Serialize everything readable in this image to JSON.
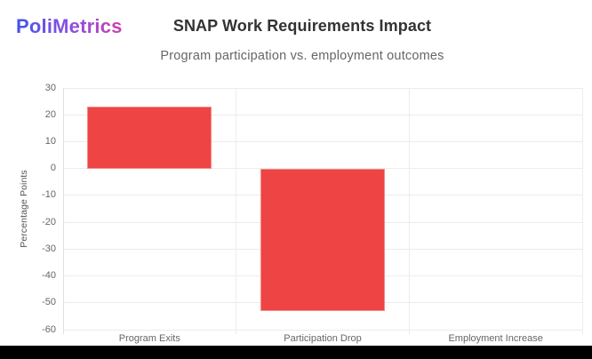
{
  "brand": {
    "name": "PoliMetrics"
  },
  "header": {
    "title": "SNAP Work Requirements Impact",
    "subtitle": "Program participation vs. employment outcomes"
  },
  "chart_data": {
    "type": "bar",
    "title": "SNAP Work Requirements Impact",
    "subtitle": "Program participation vs. employment outcomes",
    "categories": [
      "Program Exits",
      "Participation Drop",
      "Employment Increase"
    ],
    "values": [
      23,
      -53,
      0
    ],
    "xlabel": "",
    "ylabel": "Percentage Points",
    "ylim": [
      -60,
      30
    ],
    "yticks": [
      30,
      20,
      10,
      0,
      -10,
      -20,
      -30,
      -40,
      -50,
      -60
    ],
    "grid": true,
    "legend": false,
    "bar_color": "#ee4444",
    "bar_border_color": "#f38b8b",
    "gridline_color": "#ececec",
    "axis_line_color": "#e0e0e0",
    "tick_label_color": "#666666"
  },
  "colors": {
    "background": "#ffffff",
    "logo_gradient": [
      "#4353ee",
      "#8a4fe0",
      "#cf3fae"
    ],
    "title_text": "#333333",
    "subtitle_text": "#666666",
    "bottom_bar": "#000000"
  }
}
